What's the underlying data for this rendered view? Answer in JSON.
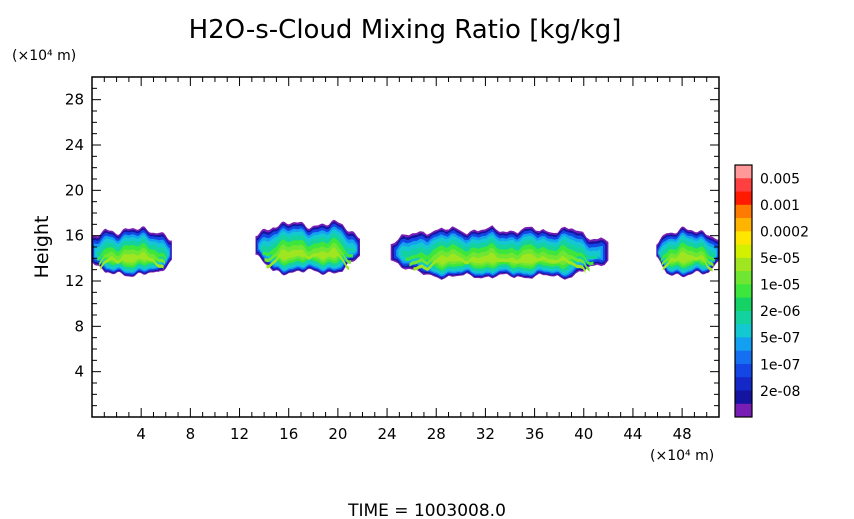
{
  "chart_data": {
    "type": "heatmap",
    "title": "H2O-s-Cloud Mixing Ratio [kg/kg]",
    "xlabel": "",
    "ylabel": "Height",
    "x_unit": "(×10⁴ m)",
    "y_unit": "(×10⁴ m)",
    "xlim": [
      0,
      51
    ],
    "ylim": [
      0,
      30
    ],
    "x_ticks": [
      4,
      8,
      12,
      16,
      20,
      24,
      28,
      32,
      36,
      40,
      44,
      48
    ],
    "y_ticks": [
      4,
      8,
      12,
      16,
      20,
      24,
      28
    ],
    "footer": "TIME =  1003008.0",
    "colorbar": {
      "labels": [
        "0.005",
        "0.001",
        "0.0002",
        "5e-05",
        "1e-05",
        "2e-06",
        "5e-07",
        "1e-07",
        "2e-08"
      ],
      "colors": [
        "#ff9999",
        "#ff4040",
        "#ff1a00",
        "#ff7a00",
        "#ffb400",
        "#ffe600",
        "#d2f000",
        "#a0e620",
        "#6ee632",
        "#3ce63c",
        "#14d264",
        "#14d2a0",
        "#14c8d2",
        "#14a0f0",
        "#1470f0",
        "#1446e6",
        "#1428c8",
        "#1414a0",
        "#781eb4"
      ]
    },
    "cloud_regions": [
      {
        "x_range": [
          0,
          6.5
        ],
        "top": 16.5,
        "bottom": 12.6
      },
      {
        "x_range": [
          13.3,
          21.8
        ],
        "top": 17.0,
        "bottom": 12.8
      },
      {
        "x_range": [
          24.3,
          42.0
        ],
        "top": 16.5,
        "bottom": 12.4
      },
      {
        "x_range": [
          45.9,
          51
        ],
        "top": 16.4,
        "bottom": 12.6
      }
    ],
    "grid": false,
    "legend": "right"
  }
}
